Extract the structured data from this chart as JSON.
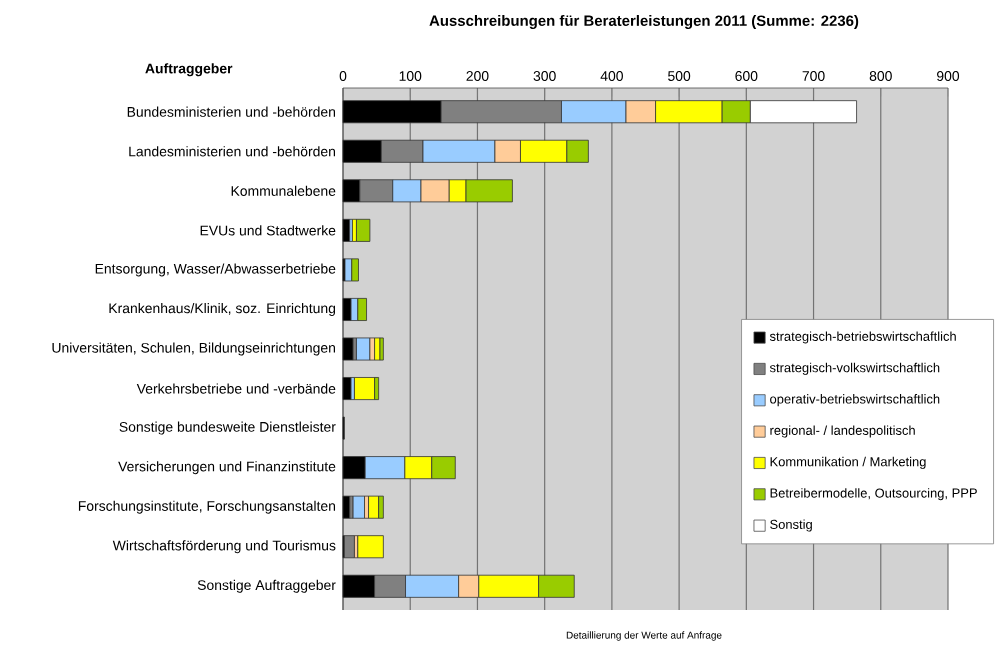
{
  "chart_data": {
    "type": "bar",
    "orientation": "horizontal",
    "stacked": true,
    "title": "Ausschreibungen für Beraterleistungen  2011 (Summe: 2236)",
    "ylabel": "Auftraggeber",
    "annotations": [
      "Detaillierung der Werte auf Anfrage"
    ],
    "categories": [
      "Bundesministerien und -behörden",
      "Landesministerien und -behörden",
      "Kommunalebene",
      "EVUs und Stadtwerke",
      "Entsorgung, Wasser/Abwasserbetriebe",
      "Krankenhaus/Klinik, soz. Einrichtung",
      "Universitäten, Schulen, Bildungseinrichtungen",
      "Verkehrsbetriebe und -verbände",
      "Sonstige bundesweite Dienstleister",
      "Versicherungen und Finanzinstitute",
      "Forschungsinstitute, Forschungsanstalten",
      "Wirtschaftsförderung und Tourismus",
      "Sonstige Auftraggeber"
    ],
    "series": [
      {
        "name": "strategisch-betriebswirtschaftlich",
        "color": "#000000",
        "values": [
          146,
          57,
          25,
          10,
          3,
          12,
          15,
          12,
          2,
          33,
          10,
          2,
          47
        ]
      },
      {
        "name": "strategisch-volkswirtschaftlich",
        "color": "#808080",
        "values": [
          179,
          62,
          49,
          null,
          null,
          null,
          5,
          null,
          null,
          null,
          5,
          15,
          46
        ]
      },
      {
        "name": "operativ-betriebswirtschaftlich",
        "color": "#99ccff",
        "values": [
          96,
          107,
          42,
          4,
          10,
          10,
          20,
          5,
          null,
          59,
          17,
          null,
          79
        ]
      },
      {
        "name": "regional- / landespolitisch",
        "color": "#ffcc99",
        "values": [
          44,
          38,
          42,
          null,
          null,
          null,
          7,
          null,
          null,
          null,
          6,
          5,
          30
        ]
      },
      {
        "name": "Kommunikation / Marketing",
        "color": "#ffff00",
        "values": [
          99,
          69,
          25,
          6,
          null,
          null,
          8,
          30,
          null,
          40,
          15,
          38,
          89
        ]
      },
      {
        "name": "Betreibermodelle,  Outsourcing, PPP",
        "color": "#99cc00",
        "values": [
          42,
          32,
          69,
          20,
          10,
          13,
          5,
          6,
          null,
          35,
          7,
          null,
          53
        ]
      },
      {
        "name": "Sonstig",
        "color": "#ffffff",
        "values": [
          158,
          null,
          null,
          null,
          null,
          null,
          null,
          null,
          null,
          null,
          null,
          null,
          null
        ]
      }
    ],
    "xlim": [
      0,
      900
    ],
    "xticks": [
      0,
      100,
      200,
      300,
      400,
      500,
      600,
      700,
      800,
      900
    ],
    "grid": "x",
    "legend": "bottom right"
  }
}
